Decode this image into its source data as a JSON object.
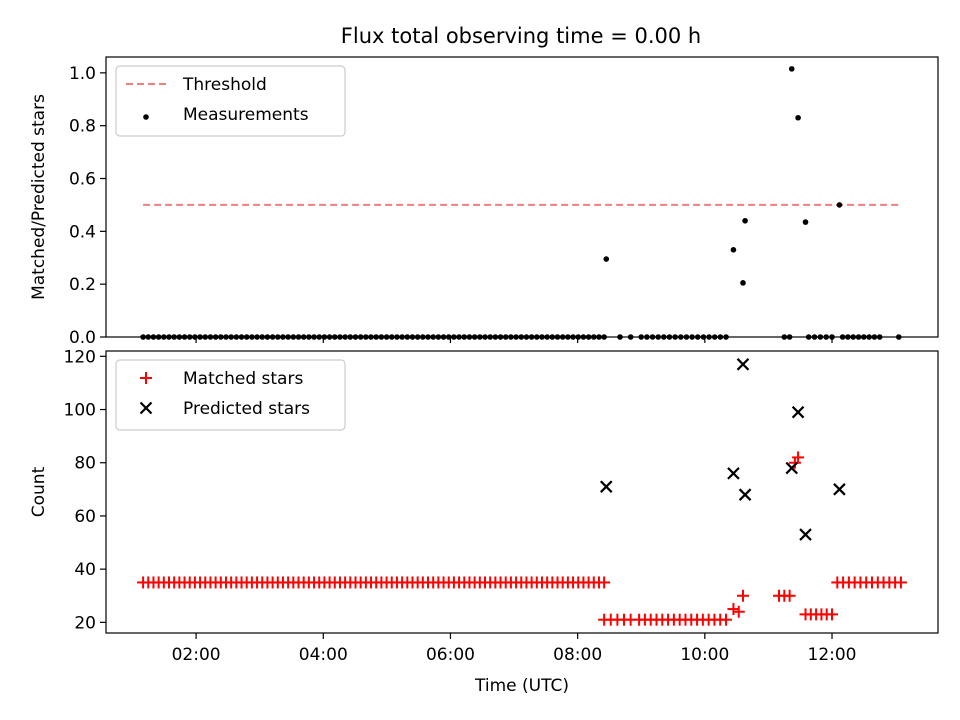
{
  "title": "Flux total observing time = 0.00 h",
  "chart_data": [
    {
      "type": "scatter",
      "ylabel": "Matched/Predicted stars",
      "xlim": [
        "00:35",
        "13:40"
      ],
      "ylim": [
        0,
        1.06
      ],
      "yticks": [
        "0.0",
        "0.2",
        "0.4",
        "0.6",
        "0.8",
        "1.0"
      ],
      "grid": false,
      "legend": "top-left",
      "threshold": {
        "name": "Threshold",
        "value": 0.5,
        "x_start": "01:10",
        "x_end": "13:05",
        "color": "#f08080",
        "style": "dashed"
      },
      "series": [
        {
          "name": "Measurements",
          "color": "#000000",
          "points": [
            [
              "08:27",
              0.295
            ],
            [
              "10:27",
              0.33
            ],
            [
              "10:36",
              0.205
            ],
            [
              "10:38",
              0.44
            ],
            [
              "11:22",
              1.015
            ],
            [
              "11:28",
              0.83
            ],
            [
              "11:35",
              0.435
            ],
            [
              "12:07",
              0.5
            ]
          ],
          "zero_runs": [
            [
              "01:10",
              "08:25",
              90
            ],
            [
              "08:40",
              "08:50",
              2
            ],
            [
              "09:00",
              "10:20",
              16
            ],
            [
              "11:15",
              "11:20",
              2
            ],
            [
              "11:38",
              "12:00",
              5
            ],
            [
              "12:10",
              "12:45",
              8
            ],
            [
              "13:03",
              "13:03",
              1
            ]
          ]
        }
      ]
    },
    {
      "type": "scatter",
      "ylabel": "Count",
      "xlabel": "Time (UTC)",
      "xlim": [
        "00:35",
        "13:40"
      ],
      "ylim": [
        16,
        122
      ],
      "yticks": [
        "20",
        "40",
        "60",
        "80",
        "100",
        "120"
      ],
      "xticks": [
        "02:00",
        "04:00",
        "06:00",
        "08:00",
        "10:00",
        "12:00"
      ],
      "grid": false,
      "legend": "top-left",
      "series": [
        {
          "name": "Matched stars",
          "color": "#ff0000",
          "marker": "plus",
          "points": [
            [
              "10:27",
              25
            ],
            [
              "10:32",
              24
            ],
            [
              "10:36",
              30
            ],
            [
              "11:25",
              80
            ],
            [
              "11:28",
              82
            ]
          ],
          "runs": [
            [
              "01:10",
              "08:25",
              35,
              90
            ],
            [
              "08:25",
              "08:50",
              21,
              5
            ],
            [
              "08:58",
              "10:20",
              21,
              16
            ],
            [
              "11:10",
              "11:20",
              30,
              3
            ],
            [
              "11:35",
              "12:00",
              23,
              6
            ],
            [
              "12:05",
              "13:05",
              35,
              12
            ]
          ]
        },
        {
          "name": "Predicted stars",
          "color": "#000000",
          "marker": "x",
          "points": [
            [
              "08:27",
              71
            ],
            [
              "10:27",
              76
            ],
            [
              "10:36",
              117
            ],
            [
              "10:38",
              68
            ],
            [
              "11:22",
              78
            ],
            [
              "11:28",
              99
            ],
            [
              "11:35",
              53
            ],
            [
              "12:07",
              70
            ]
          ]
        }
      ]
    }
  ]
}
